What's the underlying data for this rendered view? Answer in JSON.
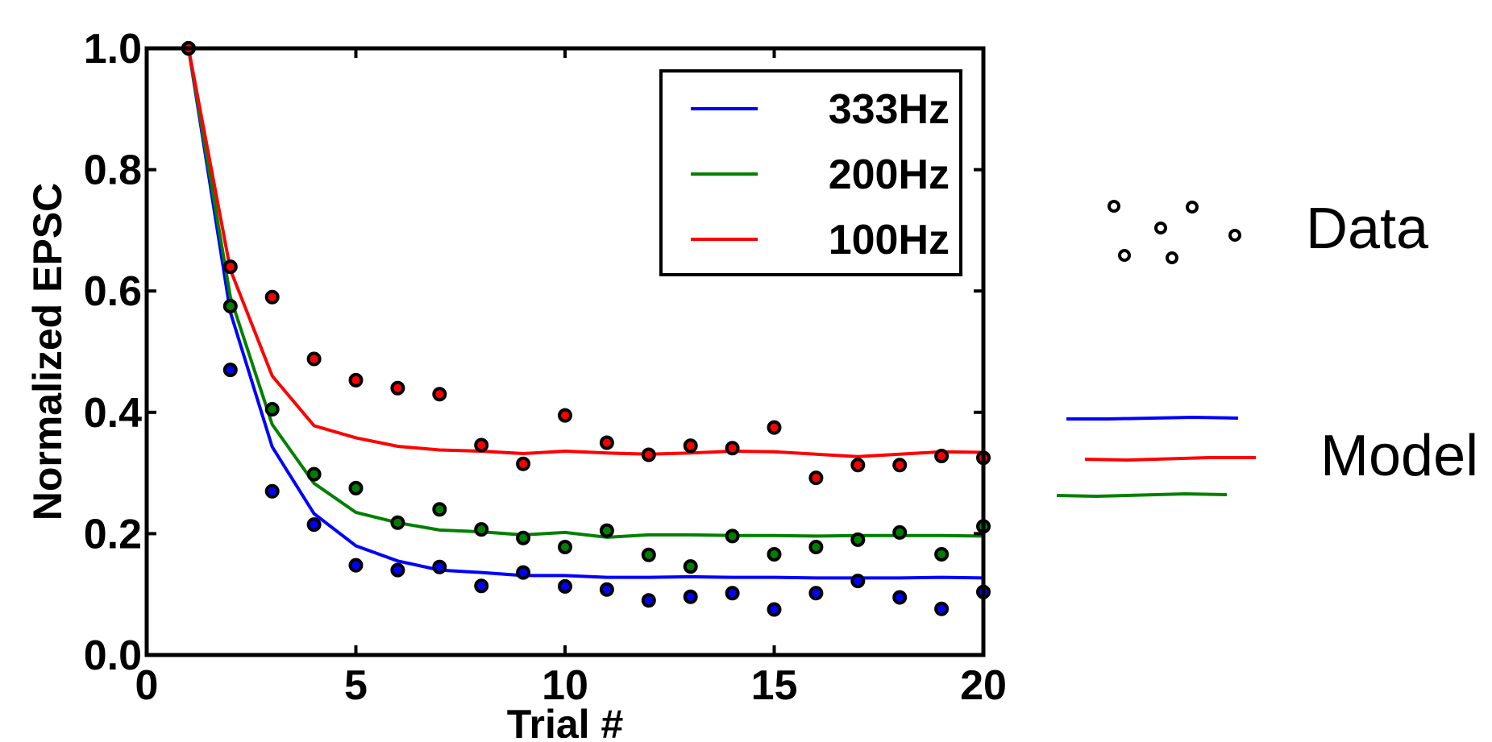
{
  "chart_data": {
    "type": "line",
    "xlabel": "Trial #",
    "ylabel": "Normalized EPSC",
    "xlim": [
      0,
      20
    ],
    "ylim": [
      0.0,
      1.0
    ],
    "x_ticks": [
      0,
      5,
      10,
      15,
      20
    ],
    "y_ticks": [
      0.0,
      0.2,
      0.4,
      0.6,
      0.8,
      1.0
    ],
    "x_tick_labels": [
      "0",
      "5",
      "10",
      "15",
      "20"
    ],
    "y_tick_labels": [
      "0.0",
      "0.2",
      "0.4",
      "0.6",
      "0.8",
      "1.0"
    ],
    "grid": false,
    "legend_position": "top-right",
    "series": [
      {
        "name": "333Hz",
        "color": "#0000ff",
        "model_x": [
          1,
          2,
          3,
          4,
          5,
          6,
          7,
          8,
          9,
          10,
          11,
          12,
          13,
          14,
          15,
          16,
          17,
          18,
          19,
          20
        ],
        "model_y": [
          1.0,
          0.565,
          0.343,
          0.233,
          0.18,
          0.155,
          0.14,
          0.136,
          0.131,
          0.131,
          0.128,
          0.128,
          0.129,
          0.128,
          0.128,
          0.127,
          0.127,
          0.127,
          0.128,
          0.127
        ],
        "data_x": [
          1,
          2,
          3,
          4,
          5,
          6,
          7,
          8,
          9,
          10,
          11,
          12,
          13,
          14,
          15,
          16,
          17,
          18,
          19,
          20
        ],
        "data_y": [
          1.0,
          0.47,
          0.27,
          0.215,
          0.148,
          0.14,
          0.145,
          0.114,
          0.136,
          0.113,
          0.108,
          0.09,
          0.096,
          0.102,
          0.075,
          0.102,
          0.122,
          0.095,
          0.076,
          0.104
        ]
      },
      {
        "name": "200Hz",
        "color": "#008000",
        "model_x": [
          1,
          2,
          3,
          4,
          5,
          6,
          7,
          8,
          9,
          10,
          11,
          12,
          13,
          14,
          15,
          16,
          17,
          18,
          19,
          20
        ],
        "model_y": [
          1.0,
          0.59,
          0.38,
          0.283,
          0.235,
          0.218,
          0.206,
          0.203,
          0.198,
          0.202,
          0.194,
          0.198,
          0.198,
          0.197,
          0.197,
          0.196,
          0.197,
          0.197,
          0.197,
          0.196
        ],
        "data_x": [
          1,
          2,
          3,
          4,
          5,
          6,
          7,
          8,
          9,
          10,
          11,
          12,
          13,
          14,
          15,
          16,
          17,
          18,
          19,
          20
        ],
        "data_y": [
          1.0,
          0.575,
          0.405,
          0.298,
          0.275,
          0.218,
          0.24,
          0.207,
          0.193,
          0.178,
          0.205,
          0.165,
          0.146,
          0.196,
          0.166,
          0.178,
          0.19,
          0.202,
          0.166,
          0.212
        ]
      },
      {
        "name": "100Hz",
        "color": "#ff0000",
        "model_x": [
          1,
          2,
          3,
          4,
          5,
          6,
          7,
          8,
          9,
          10,
          11,
          12,
          13,
          14,
          15,
          16,
          17,
          18,
          19,
          20
        ],
        "model_y": [
          1.0,
          0.635,
          0.46,
          0.378,
          0.358,
          0.344,
          0.338,
          0.336,
          0.332,
          0.336,
          0.333,
          0.331,
          0.333,
          0.336,
          0.335,
          0.331,
          0.327,
          0.331,
          0.335,
          0.334
        ],
        "data_x": [
          1,
          2,
          3,
          4,
          5,
          6,
          7,
          8,
          9,
          10,
          11,
          12,
          13,
          14,
          15,
          16,
          17,
          18,
          19,
          20
        ],
        "data_y": [
          1.0,
          0.64,
          0.59,
          0.488,
          0.453,
          0.44,
          0.43,
          0.346,
          0.315,
          0.395,
          0.35,
          0.33,
          0.345,
          0.341,
          0.375,
          0.292,
          0.313,
          0.313,
          0.328,
          0.325
        ]
      }
    ],
    "legend": {
      "entries": [
        "333Hz",
        "200Hz",
        "100Hz"
      ]
    },
    "annotations": {
      "data_label": "Data",
      "model_label": "Model",
      "data_marker_color": "#000000",
      "model_line_colors": [
        "#0000ff",
        "#ff0000",
        "#008000"
      ]
    }
  }
}
